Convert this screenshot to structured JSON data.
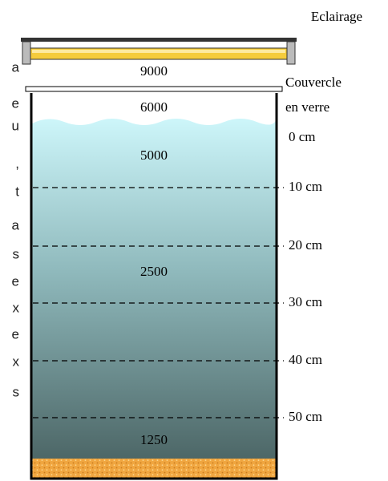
{
  "lamp_label": "Eclairage",
  "lid_label": [
    "Couvercle",
    "en verre"
  ],
  "intensities": [
    9000,
    6000,
    5000,
    2500,
    1250
  ],
  "depth_labels": [
    "0 cm",
    "10 cm",
    "20 cm",
    "30 cm",
    "40 cm",
    "50 cm"
  ],
  "side_text": [
    "a",
    "e",
    "u",
    ",",
    "t",
    "a",
    "s",
    "e",
    "x",
    "e",
    "x",
    "s"
  ]
}
